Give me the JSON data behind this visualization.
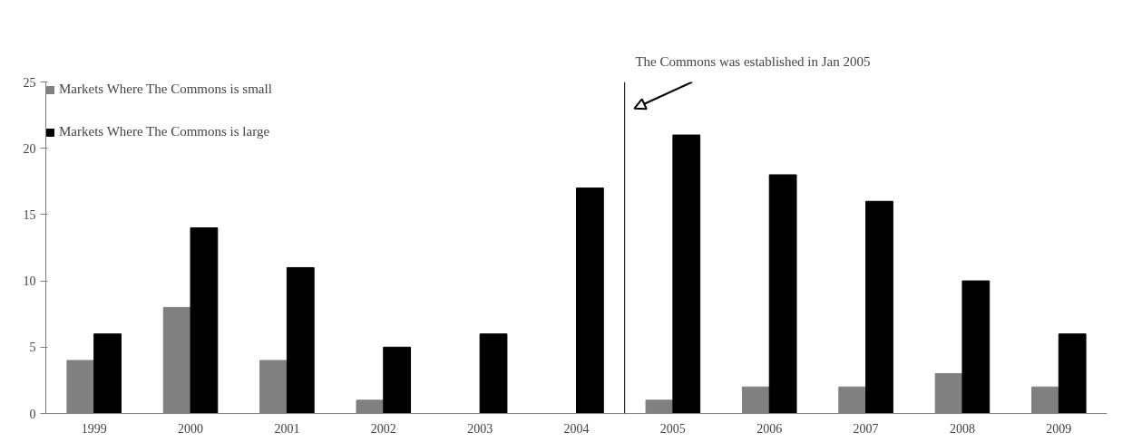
{
  "chart_data": {
    "type": "bar",
    "x": [
      1999,
      2000,
      2001,
      2002,
      2003,
      2004,
      2005,
      2006,
      2007,
      2008,
      2009
    ],
    "xlim": [
      1998.5,
      2009.5
    ],
    "xticks": [
      1999,
      2000,
      2001,
      2002,
      2003,
      2004,
      2005,
      2006,
      2007,
      2008,
      2009
    ],
    "series": [
      {
        "name": "Markets Where The Commons is small",
        "color": "#808080",
        "values": [
          4,
          8,
          4,
          1,
          0,
          0,
          1,
          2,
          2,
          3,
          2
        ]
      },
      {
        "name": "Markets Where The Commons is large",
        "color": "#000000",
        "values": [
          6,
          14,
          11,
          5,
          6,
          17,
          21,
          18,
          16,
          10,
          6
        ]
      }
    ],
    "ylim": [
      0,
      25
    ],
    "yticks": [
      0,
      5,
      10,
      15,
      20,
      25
    ],
    "grid": false,
    "legend": "top left",
    "ref_lines": [
      {
        "axis": "x",
        "value": 2004.5,
        "color": "#000000"
      }
    ],
    "annotations": [
      "The Commons was established in Jan 2005"
    ]
  }
}
